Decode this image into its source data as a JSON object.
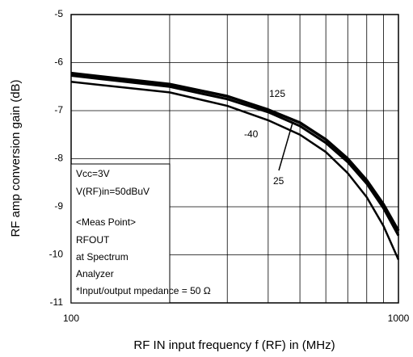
{
  "chart_data": {
    "type": "line",
    "x_label": "RF IN input frequency    f (RF) in    (MHz)",
    "y_label": "RF amp conversion gain    (dB)",
    "x": [
      100,
      200,
      300,
      400,
      500,
      600,
      700,
      800,
      900,
      1000
    ],
    "series": [
      {
        "name": "125",
        "color": "#000000",
        "values": [
          -6.22,
          -6.45,
          -6.7,
          -6.98,
          -7.25,
          -7.6,
          -8.0,
          -8.45,
          -8.95,
          -9.5
        ]
      },
      {
        "name": "25",
        "color": "#000000",
        "values": [
          -6.27,
          -6.5,
          -6.76,
          -7.03,
          -7.32,
          -7.67,
          -8.07,
          -8.52,
          -9.03,
          -9.6
        ]
      },
      {
        "name": "-40",
        "color": "#000000",
        "values": [
          -6.4,
          -6.62,
          -6.9,
          -7.2,
          -7.5,
          -7.86,
          -8.3,
          -8.8,
          -9.4,
          -10.1
        ]
      }
    ],
    "xlim": [
      100,
      1000
    ],
    "xticks": [
      100,
      1000
    ],
    "x_log": true,
    "x_minor_grid": [
      200,
      300,
      400,
      500,
      600,
      700,
      800,
      900
    ],
    "ylim": [
      -11,
      -5
    ],
    "yticks": [
      -11,
      -10,
      -9,
      -8,
      -7,
      -6,
      -5
    ],
    "grid": true,
    "annotation": [
      "Vcc=3V",
      "V(RF)in=50dBuV",
      "<Meas Point>",
      "RFOUT",
      "at Spectrum",
      "Analyzer",
      "*Input/output mpedance = 50 Ω"
    ]
  }
}
